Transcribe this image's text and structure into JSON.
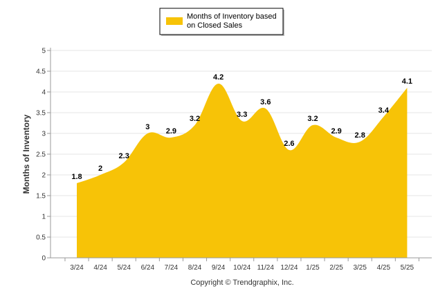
{
  "chart_data": {
    "type": "area",
    "categories": [
      "3/24",
      "4/24",
      "5/24",
      "6/24",
      "7/24",
      "8/24",
      "9/24",
      "10/24",
      "11/24",
      "12/24",
      "1/25",
      "2/25",
      "3/25",
      "4/25",
      "5/25"
    ],
    "series": [
      {
        "name": "Months of Inventory based on Closed Sales",
        "values": [
          1.8,
          2,
          2.3,
          3,
          2.9,
          3.2,
          4.2,
          3.3,
          3.6,
          2.6,
          3.2,
          2.9,
          2.8,
          3.4,
          4.1
        ],
        "labels": [
          "1.8",
          "2",
          "2.3",
          "3",
          "2.9",
          "3.2",
          "4.2",
          "3.3",
          "3.6",
          "2.6",
          "3.2",
          "2.9",
          "2.8",
          "3.4",
          "4.1"
        ],
        "color": "#F7C307"
      }
    ],
    "ylabel": "Months of Inventory",
    "xlabel": "",
    "ylim": [
      0,
      5
    ],
    "yticks": [
      "0",
      "0.5",
      "1",
      "1.5",
      "2",
      "2.5",
      "3",
      "3.5",
      "4",
      "4.5",
      "5"
    ],
    "grid": true,
    "legend_position": "top-center",
    "legend_lines": [
      "Months of Inventory based",
      "on Closed Sales"
    ],
    "credit": "Copyright © Trendgraphix, Inc."
  },
  "colors": {
    "fill": "#F7C307",
    "grid": "#e6e6e6",
    "axis": "#999999"
  }
}
